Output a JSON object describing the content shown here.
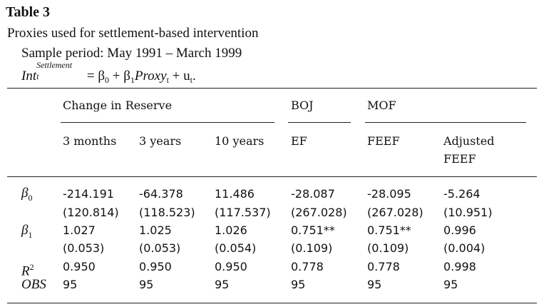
{
  "caption": {
    "label": "Table 3",
    "title": "Proxies used for settlement-based intervention",
    "period": "Sample period: May 1991 – March 1999",
    "equation": {
      "lhs": "Int",
      "lhs_superscript": "Settlement",
      "lhs_subscript": "t",
      "rhs_part1": " = β",
      "beta0_sub": "0",
      "rhs_part2": " + β",
      "beta1_sub": "1",
      "proxy": "Proxy",
      "proxy_sub": "t",
      "rhs_part3": " + u",
      "u_sub": "t",
      "end": "."
    }
  },
  "header": {
    "group_reserve": "Change in Reserve",
    "group_boj": "BOJ",
    "group_mof": "MOF",
    "col1": "3 months",
    "col2": "3 years",
    "col3": "10 years",
    "col4": "EF",
    "col5": "FEEF",
    "col6_line1": "Adjusted",
    "col6_line2": "FEEF"
  },
  "rows": {
    "beta0": {
      "label": "β",
      "label_sub": "0",
      "coef": [
        "-214.191",
        "-64.378",
        "11.486",
        "-28.087",
        "-28.095",
        "-5.264"
      ],
      "se": [
        "(120.814)",
        "(118.523)",
        "(117.537)",
        "(267.028)",
        "(267.028)",
        "(10.951)"
      ]
    },
    "beta1": {
      "label": "β",
      "label_sub": "1",
      "coef": [
        "1.027",
        "1.025",
        "1.026",
        "0.751**",
        "0.751**",
        "0.996"
      ],
      "se": [
        "(0.053)",
        "(0.053)",
        "(0.054)",
        "(0.109)",
        "(0.109)",
        "(0.004)"
      ]
    },
    "r2": {
      "label": "R",
      "label_sup": "2",
      "values": [
        "0.950",
        "0.950",
        "0.950",
        "0.778",
        "0.778",
        "0.998"
      ]
    },
    "obs": {
      "label": "OBS",
      "values": [
        "95",
        "95",
        "95",
        "95",
        "95",
        "95"
      ]
    }
  }
}
